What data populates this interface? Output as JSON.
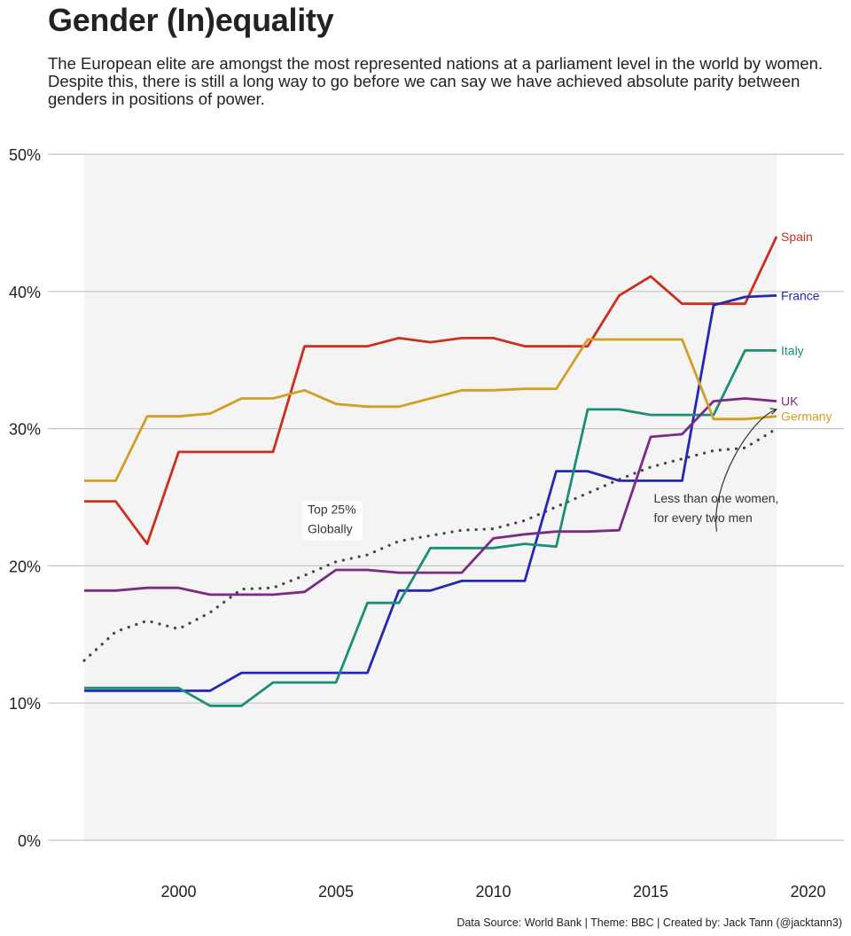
{
  "title": "Gender (In)equality",
  "subtitle": "The European elite are amongst the most represented nations at a parliament level in the world by women. Despite this, there is still a long way to go before we can say we have achieved absolute parity between genders in positions of power.",
  "caption": "Data Source: World Bank | Theme: BBC | Created by: Jack Tann (@jacktann3)",
  "chart_data": {
    "type": "line",
    "xlim": [
      1997,
      2019
    ],
    "ylim": [
      0,
      50
    ],
    "x_ticks": [
      2000,
      2005,
      2010,
      2015,
      2020
    ],
    "x_tick_labels": [
      "2000",
      "2005",
      "2010",
      "2015",
      "2020"
    ],
    "y_ticks": [
      0,
      10,
      20,
      30,
      40,
      50
    ],
    "y_tick_labels": [
      "0%",
      "10%",
      "20%",
      "30%",
      "40%",
      "50%"
    ],
    "grid": "horizontal",
    "legend": "direct labels at line ends",
    "highlight_band": {
      "x": [
        1997,
        2019
      ],
      "y": [
        0,
        50
      ],
      "color": "#f4f4f4"
    },
    "x": [
      1997,
      1998,
      1999,
      2000,
      2001,
      2002,
      2003,
      2004,
      2005,
      2006,
      2007,
      2008,
      2009,
      2010,
      2011,
      2012,
      2013,
      2014,
      2015,
      2016,
      2017,
      2018,
      2019
    ],
    "series": [
      {
        "name": "Spain",
        "color": "#cc2f1c",
        "values": [
          24.7,
          24.7,
          21.6,
          28.3,
          28.3,
          28.3,
          28.3,
          36.0,
          36.0,
          36.0,
          36.6,
          36.3,
          36.6,
          36.6,
          36.0,
          36.0,
          36.0,
          39.7,
          41.1,
          39.1,
          39.1,
          39.1,
          44.0
        ]
      },
      {
        "name": "France",
        "color": "#2328b3",
        "values": [
          10.9,
          10.9,
          10.9,
          10.9,
          10.9,
          12.2,
          12.2,
          12.2,
          12.2,
          12.2,
          18.2,
          18.2,
          18.9,
          18.9,
          18.9,
          26.9,
          26.9,
          26.2,
          26.2,
          26.2,
          39.0,
          39.6,
          39.7
        ]
      },
      {
        "name": "Italy",
        "color": "#1a8f76",
        "values": [
          11.1,
          11.1,
          11.1,
          11.1,
          9.8,
          9.8,
          11.5,
          11.5,
          11.5,
          17.3,
          17.3,
          21.3,
          21.3,
          21.3,
          21.6,
          21.4,
          31.4,
          31.4,
          31.0,
          31.0,
          31.0,
          35.7,
          35.7
        ]
      },
      {
        "name": "UK",
        "color": "#7b2b83",
        "values": [
          18.2,
          18.2,
          18.4,
          18.4,
          17.9,
          17.9,
          17.9,
          18.1,
          19.7,
          19.7,
          19.5,
          19.5,
          19.5,
          22.0,
          22.3,
          22.5,
          22.5,
          22.6,
          29.4,
          29.6,
          32.0,
          32.2,
          32.0
        ]
      },
      {
        "name": "Germany",
        "color": "#d19f24",
        "values": [
          26.2,
          26.2,
          30.9,
          30.9,
          31.1,
          32.2,
          32.2,
          32.8,
          31.8,
          31.6,
          31.6,
          32.2,
          32.8,
          32.8,
          32.9,
          32.9,
          36.5,
          36.5,
          36.5,
          36.5,
          30.7,
          30.7,
          30.9
        ]
      },
      {
        "name": "",
        "color": "#444444",
        "style": "dotted",
        "values": [
          13.1,
          15.2,
          16.0,
          15.4,
          16.6,
          18.3,
          18.4,
          19.3,
          20.3,
          20.8,
          21.8,
          22.2,
          22.6,
          22.7,
          23.3,
          24.3,
          25.3,
          26.3,
          27.2,
          27.8,
          28.4,
          28.6,
          30.0
        ]
      }
    ],
    "annotations": [
      {
        "lines": [
          "Top 25%",
          "Globally"
        ],
        "x": 2004.1,
        "y": 24.2,
        "boxed": true
      },
      {
        "lines": [
          "Less than one women,",
          "for every two men"
        ],
        "x": 2015.1,
        "y": 25.0,
        "boxed": false,
        "arrow": {
          "from": [
            2017.1,
            22.5
          ],
          "to": [
            2019,
            31.4
          ]
        }
      }
    ]
  }
}
